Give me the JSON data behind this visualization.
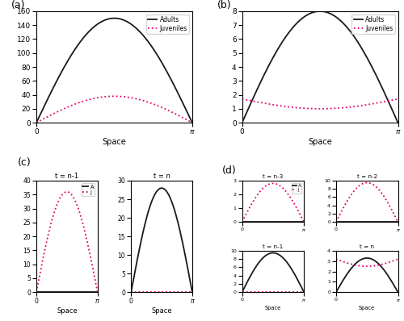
{
  "adult_color": "#1a1a1a",
  "juvenile_color": "#e8006e",
  "adult_linestyle": "-",
  "juvenile_linestyle": ":",
  "adult_linewidth": 1.3,
  "juvenile_linewidth": 1.3,
  "xlabel": "Space",
  "panel_a": {
    "adult_amp": 150,
    "juvenile_amp": 38,
    "ylim": [
      0,
      160
    ],
    "yticks": [
      0,
      20,
      40,
      60,
      80,
      100,
      120,
      140,
      160
    ],
    "legend_labels": [
      "Adults",
      "Juveniles"
    ]
  },
  "panel_b": {
    "adult_amp": 8.0,
    "juvenile_base": 1.0,
    "juvenile_cos_amp": 0.7,
    "ylim": [
      0,
      8
    ],
    "yticks": [
      0,
      1,
      2,
      3,
      4,
      5,
      6,
      7,
      8
    ],
    "legend_labels": [
      "Adults",
      "Juveniles"
    ]
  },
  "panel_c": {
    "t_nm1": {
      "juvenile_amp": 36,
      "ylim": [
        0,
        40
      ],
      "yticks": [
        0,
        5,
        10,
        15,
        20,
        25,
        30,
        35,
        40
      ],
      "title": "t = n-1"
    },
    "t_n": {
      "adult_amp": 28,
      "ylim": [
        0,
        30
      ],
      "yticks": [
        0,
        5,
        10,
        15,
        20,
        25,
        30
      ],
      "title": "t = n"
    },
    "legend_labels": [
      "A",
      "J"
    ]
  },
  "panel_d": {
    "t_nm3": {
      "juvenile_amp": 2.8,
      "ylim": [
        0,
        3
      ],
      "yticks": [
        0,
        1,
        2,
        3
      ],
      "title": "t = n-3"
    },
    "t_nm2": {
      "juvenile_amp": 9.5,
      "ylim": [
        0,
        10
      ],
      "yticks": [
        0,
        2,
        4,
        6,
        8,
        10
      ],
      "title": "t = n-2"
    },
    "t_nm1": {
      "adult_amp": 9.5,
      "ylim": [
        0,
        10
      ],
      "yticks": [
        0,
        2,
        4,
        6,
        8,
        10
      ],
      "title": "t = n-1"
    },
    "t_n": {
      "adult_amp": 3.3,
      "juvenile_base": 2.5,
      "juvenile_cos_amp": 0.7,
      "ylim": [
        0,
        4
      ],
      "yticks": [
        0,
        1,
        2,
        3,
        4
      ],
      "title": "t = n"
    },
    "legend_labels": [
      "A",
      "J"
    ]
  }
}
